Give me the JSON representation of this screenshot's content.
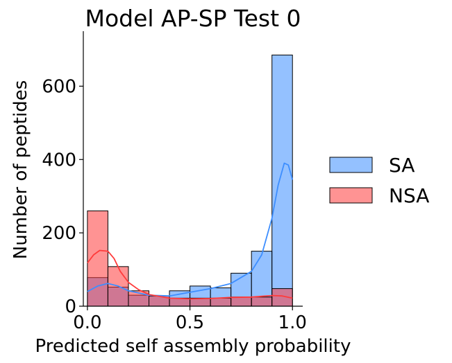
{
  "chart_data": {
    "type": "bar",
    "title": "Model AP-SP Test 0",
    "xlabel": "Predicted self assembly probability",
    "ylabel": "Number of peptides",
    "xlim": [
      -0.02,
      1.05
    ],
    "ylim": [
      0,
      750
    ],
    "xticks": [
      0.0,
      0.5,
      1.0
    ],
    "xtick_labels": [
      "0.0",
      "0.5",
      "1.0"
    ],
    "yticks": [
      0,
      200,
      400,
      600
    ],
    "ytick_labels": [
      "0",
      "200",
      "400",
      "600"
    ],
    "bin_edges": [
      0.0,
      0.1,
      0.2,
      0.3,
      0.4,
      0.5,
      0.6,
      0.7,
      0.8,
      0.9,
      1.0
    ],
    "legend_position": "right",
    "grid": false,
    "series": [
      {
        "name": "SA",
        "color": "#3d8eff",
        "counts": [
          78,
          52,
          30,
          28,
          42,
          55,
          50,
          90,
          150,
          685
        ],
        "kde": {
          "x": [
            0.0,
            0.05,
            0.1,
            0.15,
            0.2,
            0.3,
            0.4,
            0.5,
            0.6,
            0.7,
            0.8,
            0.85,
            0.9,
            0.93,
            0.96,
            0.98,
            1.0
          ],
          "y": [
            40,
            55,
            62,
            55,
            42,
            30,
            28,
            38,
            48,
            62,
            95,
            140,
            240,
            330,
            390,
            385,
            345
          ]
        }
      },
      {
        "name": "NSA",
        "color": "#ff3b3b",
        "counts": [
          260,
          108,
          42,
          28,
          22,
          22,
          22,
          25,
          25,
          48
        ],
        "kde": {
          "x": [
            0.0,
            0.03,
            0.06,
            0.1,
            0.13,
            0.16,
            0.2,
            0.25,
            0.3,
            0.4,
            0.5,
            0.6,
            0.7,
            0.8,
            0.9,
            0.95,
            1.0
          ],
          "y": [
            118,
            140,
            152,
            150,
            130,
            95,
            65,
            45,
            32,
            22,
            20,
            21,
            24,
            25,
            29,
            28,
            22
          ]
        }
      }
    ]
  }
}
